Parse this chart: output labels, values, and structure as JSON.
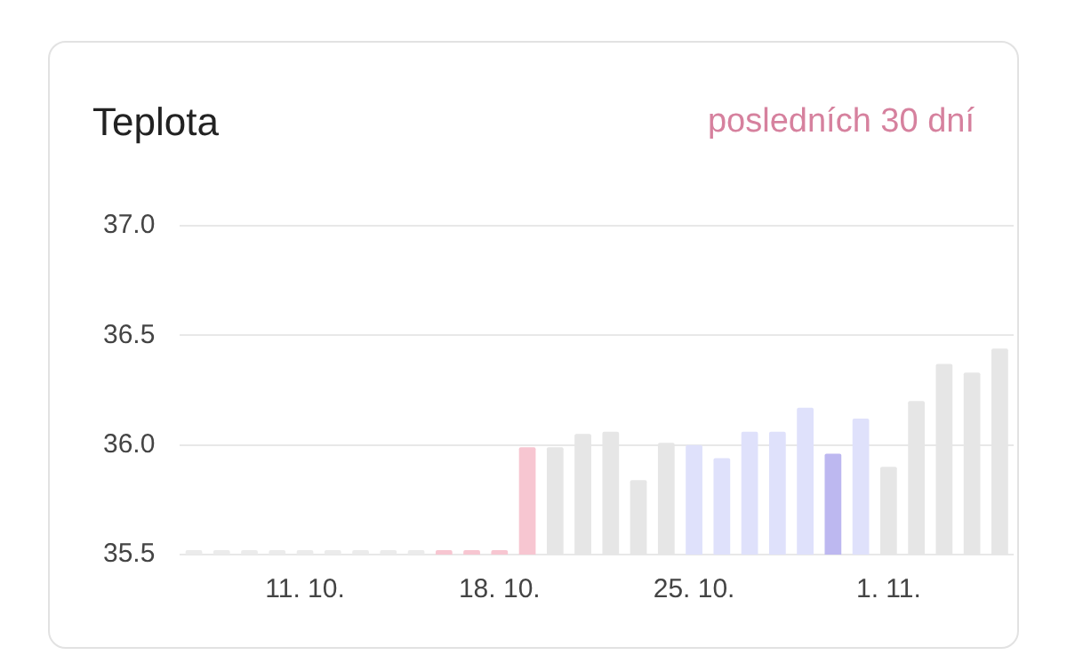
{
  "chart_data": {
    "type": "bar",
    "title": "Teplota",
    "subtitle": "posledních 30 dní",
    "categories": [
      null,
      null,
      null,
      null,
      "11. 10.",
      null,
      null,
      null,
      null,
      null,
      null,
      "18. 10.",
      null,
      null,
      null,
      null,
      null,
      null,
      "25. 10.",
      null,
      null,
      null,
      null,
      null,
      null,
      "1. 11.",
      null,
      null,
      null,
      null
    ],
    "values": [
      35.52,
      35.52,
      35.52,
      35.52,
      35.52,
      35.52,
      35.52,
      35.52,
      35.52,
      35.52,
      35.52,
      35.52,
      35.99,
      35.99,
      36.05,
      36.06,
      35.84,
      36.01,
      36.0,
      35.94,
      36.06,
      36.06,
      36.17,
      35.96,
      36.12,
      35.9,
      36.2,
      36.37,
      36.33,
      36.44
    ],
    "colors": [
      "#ebebeb",
      "#ebebeb",
      "#ebebeb",
      "#ebebeb",
      "#ebebeb",
      "#ebebeb",
      "#ebebeb",
      "#ebebeb",
      "#ebebeb",
      "#f7c6d1",
      "#f7c6d1",
      "#f7c6d1",
      "#f7c6d1",
      "#e6e6e6",
      "#e6e6e6",
      "#e6e6e6",
      "#e6e6e6",
      "#e6e6e6",
      "#dfe1fb",
      "#dfe1fb",
      "#dfe1fb",
      "#dfe1fb",
      "#dfe1fb",
      "#bdb8f0",
      "#dfe1fb",
      "#e6e6e6",
      "#e6e6e6",
      "#e6e6e6",
      "#e6e6e6",
      "#e6e6e6"
    ],
    "ylim": [
      35.5,
      37.0
    ],
    "yticks": [
      {
        "value": 35.5,
        "label": "35.5"
      },
      {
        "value": 36.0,
        "label": "36.0"
      },
      {
        "value": 36.5,
        "label": "36.5"
      },
      {
        "value": 37.0,
        "label": "37.0"
      }
    ],
    "grid": "y"
  }
}
